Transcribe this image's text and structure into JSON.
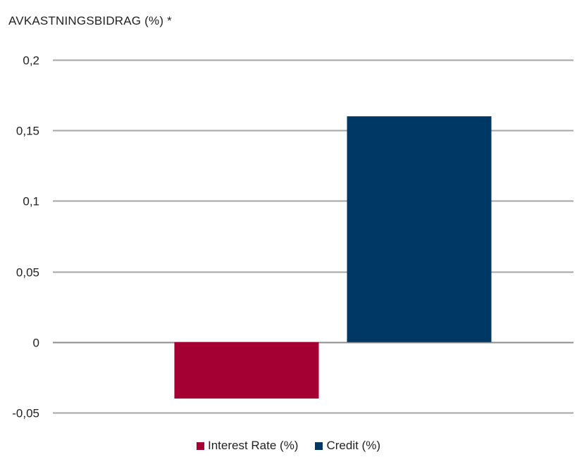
{
  "chart_data": {
    "type": "bar",
    "title": "AVKASTNINGSBIDRAG  (%)   *",
    "categories": [
      "Interest Rate (%)",
      "Credit (%)"
    ],
    "series": [
      {
        "name": "Interest Rate (%)",
        "value": -0.04,
        "color": "#a50034"
      },
      {
        "name": "Credit (%)",
        "value": 0.16,
        "color": "#003865"
      }
    ],
    "ylim": [
      -0.05,
      0.2
    ],
    "yticks": [
      0.2,
      0.15,
      0.1,
      0.05,
      0,
      -0.05
    ],
    "ytick_labels": [
      "0,2",
      "0,15",
      "0,1",
      "0,05",
      "0",
      "-0,05"
    ],
    "grid": true,
    "legend_position": "bottom"
  }
}
